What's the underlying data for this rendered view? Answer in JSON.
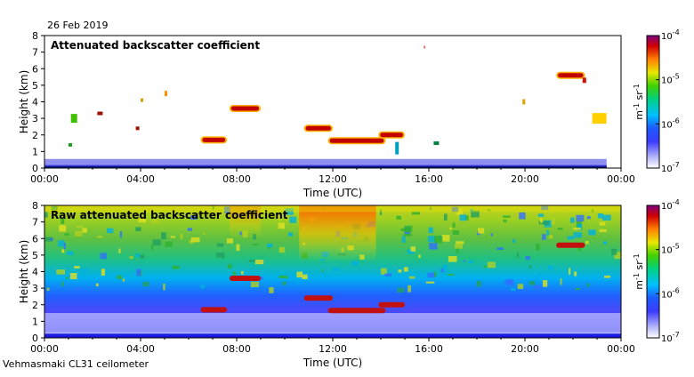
{
  "date": "26 Feb 2019",
  "footer": "Vehmasmaki CL31 ceilometer",
  "chart_data": [
    {
      "type": "heatmap",
      "title": "Attenuated backscatter coefficient",
      "xlabel": "Time (UTC)",
      "ylabel": "Height (km)",
      "xlim": [
        0,
        24
      ],
      "ylim": [
        0,
        8
      ],
      "x_ticks": [
        0,
        4,
        8,
        12,
        16,
        20,
        24
      ],
      "x_tick_labels": [
        "00:00",
        "04:00",
        "08:00",
        "12:00",
        "16:00",
        "20:00",
        "00:00"
      ],
      "y_ticks": [
        0,
        1,
        2,
        3,
        4,
        5,
        6,
        7,
        8
      ],
      "y_tick_labels": [
        "0",
        "1",
        "2",
        "3",
        "4",
        "5",
        "6",
        "7",
        "8"
      ],
      "colorbar": {
        "label_main": "m",
        "label_exp1": "-1",
        "label_mid": " sr",
        "label_exp2": "-1",
        "base_labels": [
          "10",
          "10",
          "10",
          "10"
        ],
        "exponents": [
          "-4",
          "-5",
          "-6",
          "-7"
        ],
        "tick_exponents": [
          -4,
          -5,
          -6,
          -7
        ],
        "range_exp": [
          -7,
          -4
        ]
      },
      "features": [
        {
          "kind": "low_layer",
          "t_start": 0,
          "t_end": 23.4,
          "h_top": 0.55
        },
        {
          "kind": "cloud",
          "t": 7.7,
          "t2": 9.0,
          "h": 3.6
        },
        {
          "kind": "cloud",
          "t": 10.8,
          "t2": 12.0,
          "h": 2.4
        },
        {
          "kind": "cloud",
          "t": 11.8,
          "t2": 14.2,
          "h": 1.65
        },
        {
          "kind": "cloud",
          "t": 13.9,
          "t2": 15.0,
          "h": 2.0
        },
        {
          "kind": "cloud",
          "t": 6.5,
          "t2": 7.6,
          "h": 1.7
        },
        {
          "kind": "cloud",
          "t": 21.3,
          "t2": 22.5,
          "h": 5.6
        }
      ]
    },
    {
      "type": "heatmap",
      "title": "Raw attenuated backscatter coefficient",
      "xlabel": "Time (UTC)",
      "ylabel": "Height (km)",
      "xlim": [
        0,
        24
      ],
      "ylim": [
        0,
        8
      ],
      "x_ticks": [
        0,
        4,
        8,
        12,
        16,
        20,
        24
      ],
      "x_tick_labels": [
        "00:00",
        "04:00",
        "08:00",
        "12:00",
        "16:00",
        "20:00",
        "00:00"
      ],
      "y_ticks": [
        0,
        1,
        2,
        3,
        4,
        5,
        6,
        7,
        8
      ],
      "y_tick_labels": [
        "0",
        "1",
        "2",
        "3",
        "4",
        "5",
        "6",
        "7",
        "8"
      ],
      "colorbar": {
        "label_main": "m",
        "label_exp1": "-1",
        "label_mid": " sr",
        "label_exp2": "-1",
        "base_labels": [
          "10",
          "10",
          "10",
          "10"
        ],
        "exponents": [
          "-4",
          "-5",
          "-6",
          "-7"
        ],
        "tick_exponents": [
          -4,
          -5,
          -6,
          -7
        ],
        "range_exp": [
          -7,
          -4
        ]
      }
    }
  ]
}
